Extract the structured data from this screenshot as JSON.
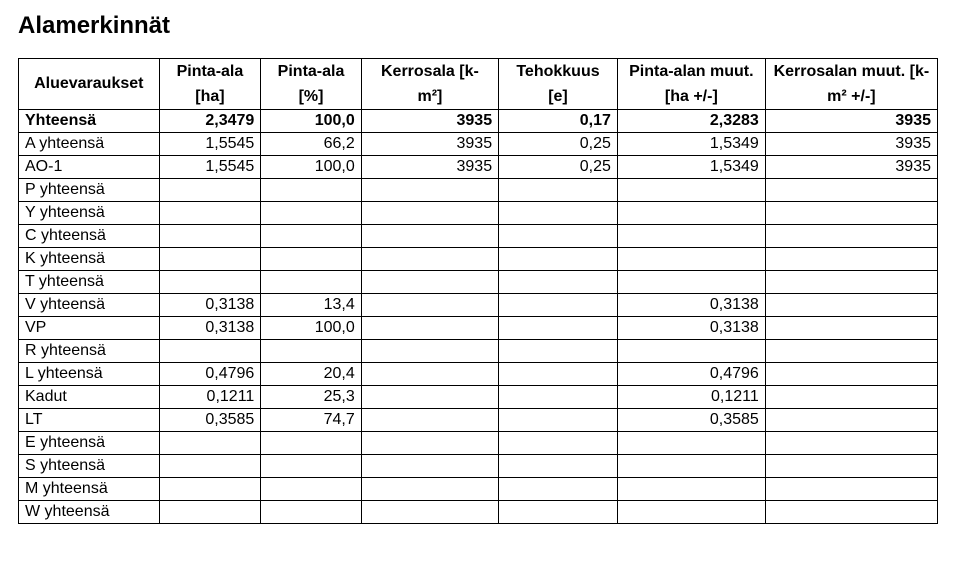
{
  "title": "Alamerkinnät",
  "columns": [
    {
      "top": "",
      "bot": "Aluevaraukset"
    },
    {
      "top": "Pinta-ala",
      "bot": "[ha]"
    },
    {
      "top": "Pinta-ala",
      "bot": "[%]"
    },
    {
      "top": "Kerrosala [k-",
      "bot": "m²]"
    },
    {
      "top": "Tehokkuus",
      "bot": "[e]"
    },
    {
      "top": "Pinta-alan muut.",
      "bot": "[ha +/-]"
    },
    {
      "top": "Kerrosalan muut. [k-",
      "bot": "m² +/-]"
    }
  ],
  "rows": [
    {
      "bold": true,
      "cells": [
        "Yhteensä",
        "2,3479",
        "100,0",
        "3935",
        "0,17",
        "2,3283",
        "3935"
      ]
    },
    {
      "bold": false,
      "cells": [
        "A yhteensä",
        "1,5545",
        "66,2",
        "3935",
        "0,25",
        "1,5349",
        "3935"
      ]
    },
    {
      "bold": false,
      "cells": [
        "AO-1",
        "1,5545",
        "100,0",
        "3935",
        "0,25",
        "1,5349",
        "3935"
      ]
    },
    {
      "bold": false,
      "cells": [
        "P yhteensä",
        "",
        "",
        "",
        "",
        "",
        ""
      ]
    },
    {
      "bold": false,
      "cells": [
        "Y yhteensä",
        "",
        "",
        "",
        "",
        "",
        ""
      ]
    },
    {
      "bold": false,
      "cells": [
        "C yhteensä",
        "",
        "",
        "",
        "",
        "",
        ""
      ]
    },
    {
      "bold": false,
      "cells": [
        "K yhteensä",
        "",
        "",
        "",
        "",
        "",
        ""
      ]
    },
    {
      "bold": false,
      "cells": [
        "T yhteensä",
        "",
        "",
        "",
        "",
        "",
        ""
      ]
    },
    {
      "bold": false,
      "cells": [
        "V yhteensä",
        "0,3138",
        "13,4",
        "",
        "",
        "0,3138",
        ""
      ]
    },
    {
      "bold": false,
      "cells": [
        "VP",
        "0,3138",
        "100,0",
        "",
        "",
        "0,3138",
        ""
      ]
    },
    {
      "bold": false,
      "cells": [
        "R yhteensä",
        "",
        "",
        "",
        "",
        "",
        ""
      ]
    },
    {
      "bold": false,
      "cells": [
        "L yhteensä",
        "0,4796",
        "20,4",
        "",
        "",
        "0,4796",
        ""
      ]
    },
    {
      "bold": false,
      "cells": [
        "Kadut",
        "0,1211",
        "25,3",
        "",
        "",
        "0,1211",
        ""
      ]
    },
    {
      "bold": false,
      "cells": [
        "LT",
        "0,3585",
        "74,7",
        "",
        "",
        "0,3585",
        ""
      ]
    },
    {
      "bold": false,
      "cells": [
        "E yhteensä",
        "",
        "",
        "",
        "",
        "",
        ""
      ]
    },
    {
      "bold": false,
      "cells": [
        "S yhteensä",
        "",
        "",
        "",
        "",
        "",
        ""
      ]
    },
    {
      "bold": false,
      "cells": [
        "M yhteensä",
        "",
        "",
        "",
        "",
        "",
        ""
      ]
    },
    {
      "bold": false,
      "cells": [
        "W yhteensä",
        "",
        "",
        "",
        "",
        "",
        ""
      ]
    }
  ]
}
